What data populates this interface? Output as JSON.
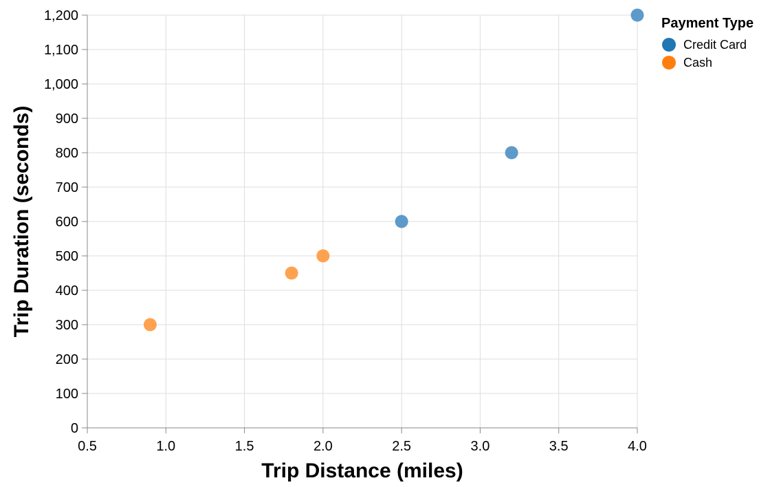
{
  "chart_data": {
    "type": "scatter",
    "title": "",
    "xlabel": "Trip Distance (miles)",
    "ylabel": "Trip Duration (seconds)",
    "xlim": [
      0.5,
      4.0
    ],
    "ylim": [
      0,
      1200
    ],
    "x_ticks": [
      0.5,
      1.0,
      1.5,
      2.0,
      2.5,
      3.0,
      3.5,
      4.0
    ],
    "x_tick_labels": [
      "0.5",
      "1.0",
      "1.5",
      "2.0",
      "2.5",
      "3.0",
      "3.5",
      "4.0"
    ],
    "y_ticks": [
      0,
      100,
      200,
      300,
      400,
      500,
      600,
      700,
      800,
      900,
      1000,
      1100,
      1200
    ],
    "y_tick_labels": [
      "0",
      "100",
      "200",
      "300",
      "400",
      "500",
      "600",
      "700",
      "800",
      "900",
      "1,000",
      "1,100",
      "1,200"
    ],
    "grid": true,
    "legend": {
      "title": "Payment Type",
      "placement": "right",
      "entries": [
        "Credit Card",
        "Cash"
      ]
    },
    "series": [
      {
        "name": "Credit Card",
        "color": "#4c8fc4",
        "legend_color": "#1f77b4",
        "points": [
          {
            "x": 2.5,
            "y": 600
          },
          {
            "x": 3.2,
            "y": 800
          },
          {
            "x": 4.0,
            "y": 1200
          }
        ]
      },
      {
        "name": "Cash",
        "color": "#ff983d",
        "legend_color": "#ff7f0e",
        "points": [
          {
            "x": 0.9,
            "y": 300
          },
          {
            "x": 1.8,
            "y": 450
          },
          {
            "x": 2.0,
            "y": 500
          }
        ]
      }
    ]
  }
}
